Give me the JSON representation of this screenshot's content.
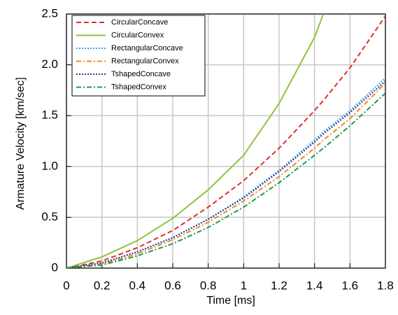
{
  "chart_data": {
    "type": "line",
    "xlabel": "Time [ms]",
    "ylabel": "Armature Velocity [km/sec]",
    "x": [
      0,
      0.2,
      0.4,
      0.6,
      0.8,
      1.0,
      1.2,
      1.4,
      1.45,
      1.6,
      1.8
    ],
    "series": [
      {
        "name": "CircularConcave",
        "color": "#e0302a",
        "style": "dashed",
        "values": [
          0,
          0.07,
          0.2,
          0.37,
          0.6,
          0.86,
          1.18,
          1.55,
          1.65,
          1.97,
          2.48
        ]
      },
      {
        "name": "CircularConvex",
        "color": "#8cc43c",
        "style": "solid",
        "values": [
          0,
          0.11,
          0.27,
          0.49,
          0.77,
          1.11,
          1.62,
          2.27,
          2.5,
          null,
          null
        ]
      },
      {
        "name": "RectangularConcave",
        "color": "#3aa8e0",
        "style": "dotted",
        "values": [
          0,
          0.05,
          0.16,
          0.3,
          0.48,
          0.7,
          0.96,
          1.26,
          1.34,
          1.55,
          1.87
        ]
      },
      {
        "name": "RectangularConvex",
        "color": "#f08a24",
        "style": "dashdot",
        "values": [
          0,
          0.04,
          0.14,
          0.28,
          0.45,
          0.66,
          0.9,
          1.18,
          1.26,
          1.47,
          1.82
        ]
      },
      {
        "name": "TshapedConcave",
        "color": "#2a3a9a",
        "style": "dotted",
        "values": [
          0,
          0.05,
          0.16,
          0.3,
          0.48,
          0.69,
          0.95,
          1.24,
          1.32,
          1.53,
          1.84
        ]
      },
      {
        "name": "TshapedConvex",
        "color": "#1f9a4a",
        "style": "dashdot",
        "values": [
          0,
          0.03,
          0.12,
          0.24,
          0.4,
          0.6,
          0.84,
          1.11,
          1.18,
          1.4,
          1.72
        ]
      }
    ],
    "xlim": [
      0,
      1.8
    ],
    "xticks": [
      0,
      0.2,
      0.4,
      0.6,
      0.8,
      1.0,
      1.2,
      1.4,
      1.6,
      1.8
    ],
    "ylim": [
      0,
      2.5
    ],
    "yticks": [
      0,
      0.5,
      {
        "value": 1,
        "label": "1.0"
      },
      1.5,
      {
        "value": 2,
        "label": "2.0"
      },
      2.5
    ],
    "grid": true,
    "legend": "upper left"
  }
}
